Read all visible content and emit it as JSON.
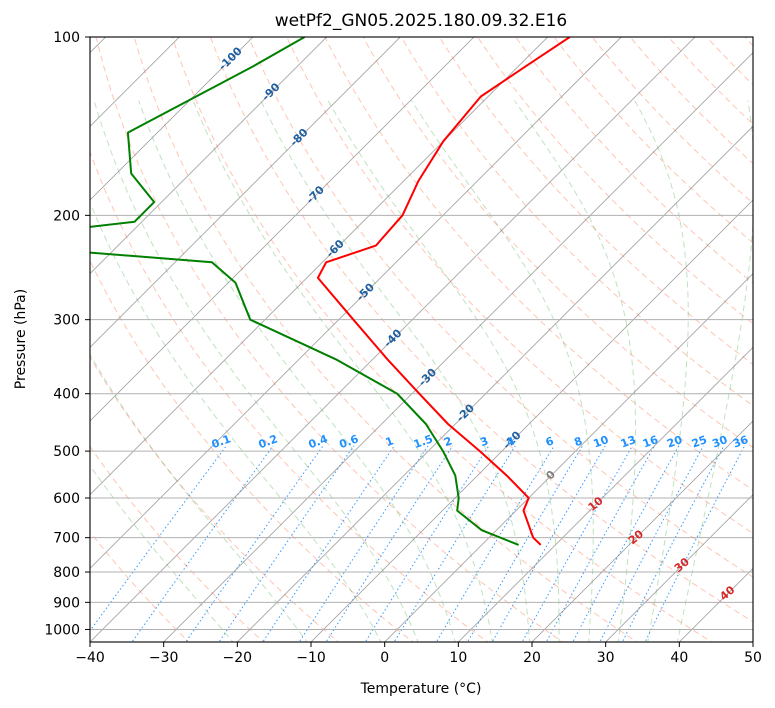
{
  "chart_data": {
    "type": "line",
    "subtype": "skew-t log-p diagram",
    "title": "wetPf2_GN05.2025.180.09.32.E16",
    "xlabel": "Temperature (°C)",
    "ylabel": "Pressure (hPa)",
    "xlim": [
      -40,
      50
    ],
    "ylim": [
      1050,
      100
    ],
    "y_scale": "log",
    "x_ticks": [
      "−40",
      "−30",
      "−20",
      "−10",
      "0",
      "10",
      "20",
      "30",
      "40",
      "50"
    ],
    "y_ticks": [
      {
        "value": 100,
        "label": "100"
      },
      {
        "value": 200,
        "label": "200"
      },
      {
        "value": 300,
        "label": "300"
      },
      {
        "value": 400,
        "label": "400"
      },
      {
        "value": 500,
        "label": "500"
      },
      {
        "value": 600,
        "label": "600"
      },
      {
        "value": 700,
        "label": "700"
      },
      {
        "value": 800,
        "label": "800"
      },
      {
        "value": 900,
        "label": "900"
      },
      {
        "value": 1000,
        "label": "1000"
      }
    ],
    "grid": true,
    "isotherm_labels": [
      {
        "label": "-100",
        "p": 109
      },
      {
        "label": "-90",
        "p": 124
      },
      {
        "label": "-80",
        "p": 148
      },
      {
        "label": "-70",
        "p": 185
      },
      {
        "label": "-60",
        "p": 228
      },
      {
        "label": "-50",
        "p": 270
      },
      {
        "label": "-40",
        "p": 323
      },
      {
        "label": "-30",
        "p": 376
      },
      {
        "label": "-20",
        "p": 432
      },
      {
        "label": "-10",
        "p": 480
      },
      {
        "label": "0",
        "p": 550
      }
    ],
    "mixing_ratio_labels": [
      "0.1",
      "0.2",
      "0.4",
      "0.6",
      "1",
      "1.5",
      "2",
      "3",
      "4",
      "6",
      "8",
      "10",
      "13",
      "16",
      "20",
      "25",
      "30",
      "36"
    ],
    "moist_adiabat_labels": [
      {
        "label": "10",
        "p": 615
      },
      {
        "label": "20",
        "p": 700
      },
      {
        "label": "30",
        "p": 780
      },
      {
        "label": "40",
        "p": 870
      }
    ],
    "series": [
      {
        "color": "#ff0000",
        "points": [
          {
            "p": 100,
            "t": -57
          },
          {
            "p": 112,
            "t": -59
          },
          {
            "p": 126,
            "t": -61
          },
          {
            "p": 150,
            "t": -60
          },
          {
            "p": 175,
            "t": -58
          },
          {
            "p": 200,
            "t": -55.5
          },
          {
            "p": 225,
            "t": -55
          },
          {
            "p": 240,
            "t": -59.5
          },
          {
            "p": 255,
            "t": -58.5
          },
          {
            "p": 300,
            "t": -48
          },
          {
            "p": 350,
            "t": -38
          },
          {
            "p": 400,
            "t": -29
          },
          {
            "p": 450,
            "t": -21
          },
          {
            "p": 500,
            "t": -13
          },
          {
            "p": 550,
            "t": -6
          },
          {
            "p": 600,
            "t": 0
          },
          {
            "p": 630,
            "t": 1
          },
          {
            "p": 700,
            "t": 6
          },
          {
            "p": 720,
            "t": 8
          }
        ]
      },
      {
        "color": "#008000",
        "points": [
          {
            "p": 100,
            "t": -93
          },
          {
            "p": 112,
            "t": -96
          },
          {
            "p": 145,
            "t": -104
          },
          {
            "p": 170,
            "t": -98
          },
          {
            "p": 190,
            "t": -91
          },
          {
            "p": 205,
            "t": -91
          },
          {
            "p": 222,
            "t": -112
          },
          {
            "p": 240,
            "t": -75
          },
          {
            "p": 260,
            "t": -69
          },
          {
            "p": 300,
            "t": -62
          },
          {
            "p": 350,
            "t": -45
          },
          {
            "p": 400,
            "t": -32
          },
          {
            "p": 450,
            "t": -24
          },
          {
            "p": 500,
            "t": -18
          },
          {
            "p": 550,
            "t": -13
          },
          {
            "p": 600,
            "t": -9.5
          },
          {
            "p": 630,
            "t": -8
          },
          {
            "p": 680,
            "t": -2
          },
          {
            "p": 720,
            "t": 5
          }
        ]
      }
    ]
  }
}
